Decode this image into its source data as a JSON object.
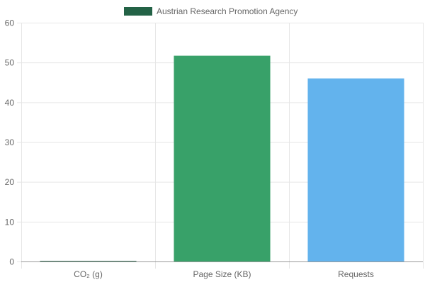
{
  "chart_data": {
    "type": "bar",
    "categories": [
      "CO₂ (g)",
      "Page Size (KB)",
      "Requests"
    ],
    "series": [
      {
        "name": "Austrian Research Promotion Agency",
        "values": [
          0.15,
          51.7,
          46.0
        ]
      }
    ],
    "ylim": [
      0,
      60
    ],
    "yticks": [
      0,
      10,
      20,
      30,
      40,
      50,
      60
    ],
    "grid": true,
    "legend_position": "top",
    "colors": {
      "legend_swatch": "#236246",
      "bars": [
        "#236246",
        "#38A169",
        "#63B3ED"
      ],
      "grid": "#e6e6e6",
      "axis": "#999999",
      "text": "#666666"
    }
  }
}
